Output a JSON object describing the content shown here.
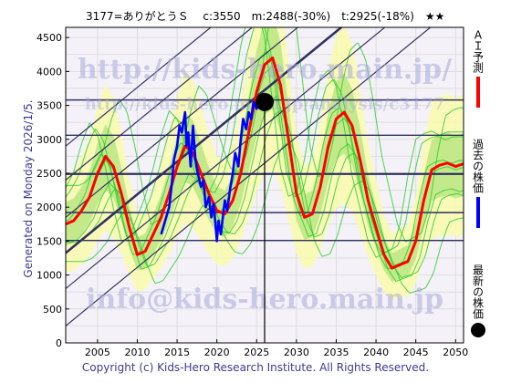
{
  "header": {
    "title": "3177=ありがとうＳ　 c:3550　m:2488(-30%)　t:2925(-18%)　★★"
  },
  "side_note": "Generated on Monday 2026/1/5.",
  "footer": "Copyright (c) Kids-Hero Research Institute. All Rights Reserved.",
  "watermarks": [
    "http://kids-hero.main.jp/",
    "http://kids-hero.main.jp/analysis/c3177",
    "info@kids-hero.main.jp"
  ],
  "legend": [
    {
      "label": "ＡＩ予測",
      "color": "#ff0000",
      "kind": "line"
    },
    {
      "label": "過去の株価",
      "color": "#0000ff",
      "kind": "line"
    },
    {
      "label": "最新の株価",
      "color": "#000000",
      "kind": "dot"
    }
  ],
  "colors": {
    "forecast": "#ff0000",
    "history": "#0000ff",
    "band_green": "#22cc22",
    "band_fill": "#99dd66",
    "band_yellow": "#fafab0",
    "channel": "#303060",
    "bg_grid": "#dddddd"
  },
  "chart_data": {
    "type": "line",
    "xlim": [
      2001,
      2051
    ],
    "ylim": [
      0,
      4650
    ],
    "xticks": [
      2005,
      2010,
      2015,
      2020,
      2025,
      2030,
      2035,
      2040,
      2045,
      2050
    ],
    "yticks": [
      0,
      500,
      1000,
      1500,
      2000,
      2500,
      3000,
      3500,
      4000,
      4500
    ],
    "grid": true,
    "latest": {
      "x": 2026.0,
      "y": 3550
    },
    "horizontal_levels": [
      3580,
      3060,
      2490,
      1920,
      1510
    ],
    "channel_lines": [
      {
        "p1": [
          2001,
          250
        ],
        "p2": [
          2051,
          5050
        ]
      },
      {
        "p1": [
          2001,
          800
        ],
        "p2": [
          2051,
          5600
        ]
      },
      {
        "p1": [
          2001,
          1320
        ],
        "p2": [
          2051,
          6120
        ]
      },
      {
        "p1": [
          2001,
          1330
        ],
        "p2": [
          2051,
          6130
        ]
      },
      {
        "p1": [
          2001,
          1850
        ],
        "p2": [
          2051,
          6650
        ]
      },
      {
        "p1": [
          2001,
          2400
        ],
        "p2": [
          2051,
          7200
        ]
      },
      {
        "p1": [
          2001,
          2900
        ],
        "p2": [
          2051,
          7700
        ]
      }
    ],
    "series": [
      {
        "name": "ＡＩ予測",
        "x": [
          2001,
          2002,
          2003,
          2004,
          2005,
          2006,
          2007,
          2008,
          2009,
          2010,
          2011,
          2012,
          2013,
          2014,
          2015,
          2016,
          2017,
          2018,
          2019,
          2020,
          2021,
          2022,
          2023,
          2024,
          2025,
          2026,
          2027,
          2028,
          2029,
          2030,
          2031,
          2032,
          2033,
          2034,
          2035,
          2036,
          2037,
          2038,
          2039,
          2040,
          2041,
          2042,
          2043,
          2044,
          2045,
          2046,
          2047,
          2048,
          2049,
          2050,
          2051
        ],
        "y": [
          1750,
          1800,
          1950,
          2150,
          2500,
          2750,
          2600,
          2200,
          1700,
          1300,
          1350,
          1600,
          1850,
          2200,
          2600,
          2900,
          2800,
          2500,
          2200,
          1950,
          1900,
          2100,
          2500,
          3100,
          3700,
          4100,
          4200,
          3800,
          3000,
          2200,
          1850,
          1900,
          2300,
          2900,
          3300,
          3400,
          3200,
          2700,
          2100,
          1700,
          1300,
          1100,
          1150,
          1200,
          1500,
          2100,
          2550,
          2620,
          2650,
          2600,
          2640
        ]
      },
      {
        "name": "過去の株価",
        "x": [
          2013.0,
          2013.5,
          2014.0,
          2014.3,
          2014.6,
          2015.0,
          2015.3,
          2015.6,
          2016.0,
          2016.2,
          2016.4,
          2016.7,
          2017.0,
          2017.3,
          2017.6,
          2018.0,
          2018.3,
          2018.6,
          2019.0,
          2019.3,
          2019.6,
          2020.0,
          2020.2,
          2020.5,
          2020.8,
          2021.0,
          2021.3,
          2021.7,
          2022.0,
          2022.3,
          2022.7,
          2023.0,
          2023.3,
          2023.7,
          2024.0,
          2024.3,
          2024.6,
          2025.0,
          2025.3,
          2025.6,
          2026.0
        ],
        "y": [
          1600,
          1800,
          2000,
          2300,
          2700,
          2900,
          3200,
          3100,
          3400,
          2900,
          3100,
          2600,
          3200,
          2700,
          2500,
          2300,
          2400,
          2000,
          2150,
          1850,
          2050,
          1500,
          1800,
          1600,
          1900,
          2100,
          1950,
          2300,
          2500,
          2800,
          2600,
          3000,
          3300,
          3150,
          3400,
          3300,
          3550,
          3450,
          3600,
          3500,
          3550
        ]
      }
    ]
  }
}
